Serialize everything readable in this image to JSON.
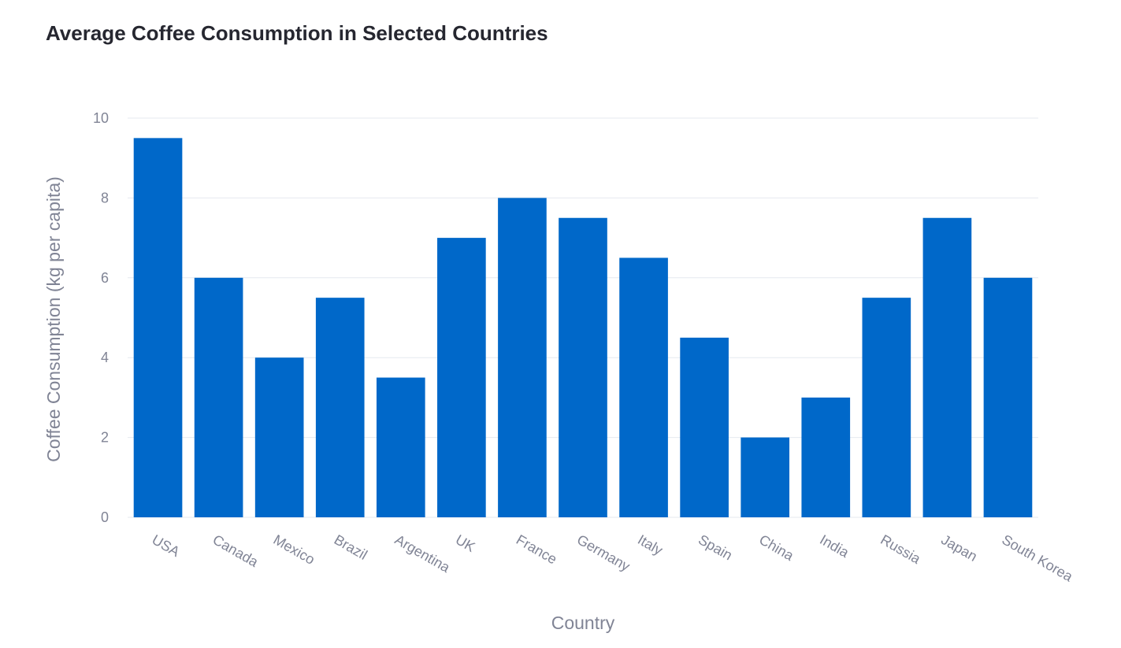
{
  "chart_data": {
    "type": "bar",
    "title": "Average Coffee Consumption in Selected Countries",
    "xlabel": "Country",
    "ylabel": "Coffee Consumption (kg per capita)",
    "categories": [
      "USA",
      "Canada",
      "Mexico",
      "Brazil",
      "Argentina",
      "UK",
      "France",
      "Germany",
      "Italy",
      "Spain",
      "China",
      "India",
      "Russia",
      "Japan",
      "South Korea"
    ],
    "values": [
      9.5,
      6,
      4,
      5.5,
      3.5,
      7,
      8,
      7.5,
      6.5,
      4.5,
      2,
      3,
      5.5,
      7.5,
      6
    ],
    "ylim": [
      0,
      10
    ],
    "yticks": [
      0,
      2,
      4,
      6,
      8,
      10
    ],
    "grid": true,
    "legend": "none",
    "colors": {
      "bar": "#0068c9",
      "grid": "#e6e9ef",
      "axis_text": "#808495",
      "title": "#262730"
    }
  }
}
